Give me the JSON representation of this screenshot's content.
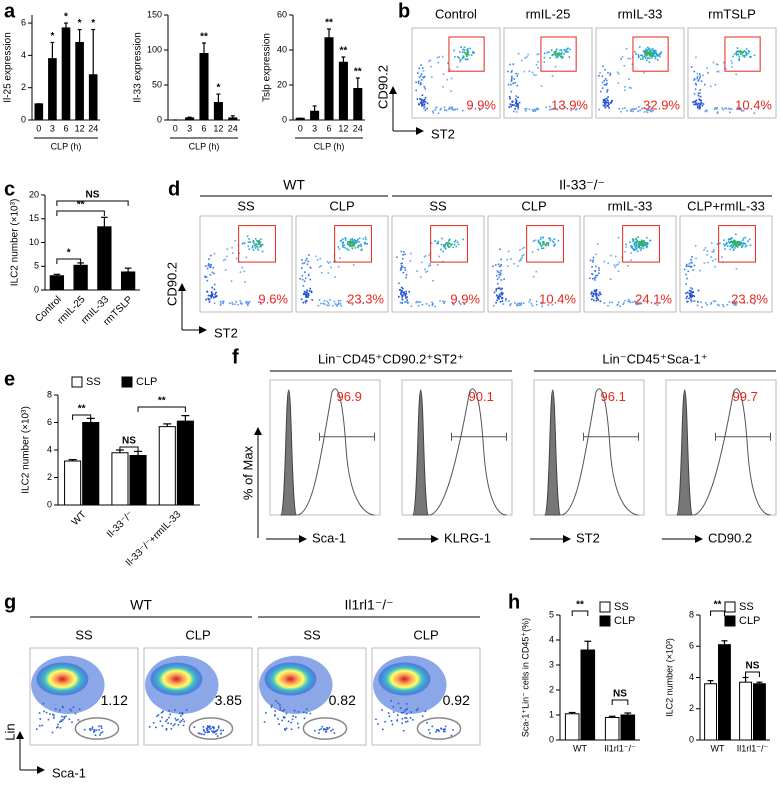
{
  "chart_data": [
    {
      "type": "bar",
      "panel": "a",
      "ylabel": "Il-25 expression",
      "xlabel": "CLP (h)",
      "categories": [
        0,
        3,
        6,
        12,
        24
      ],
      "values": [
        1,
        3.8,
        5.7,
        4.8,
        2.8
      ],
      "errors": [
        0,
        1,
        0.3,
        0.8,
        2.8
      ],
      "annotations": [
        null,
        "*",
        "*",
        "*",
        "*"
      ],
      "color": "#000000",
      "ylim": [
        0,
        6.5
      ],
      "yticks": [
        0,
        2,
        4,
        6
      ]
    },
    {
      "type": "bar",
      "ylabel": "Il-33 expression",
      "xlabel": "CLP (h)",
      "categories": [
        0,
        3,
        6,
        12,
        24
      ],
      "values": [
        0,
        3,
        95,
        25,
        3
      ],
      "errors": [
        0,
        1,
        15,
        12,
        3
      ],
      "annotations": [
        null,
        null,
        "**",
        "*",
        null
      ],
      "color": "#000000",
      "ylim": [
        0,
        150
      ],
      "yticks": [
        0,
        50,
        100,
        150
      ]
    },
    {
      "type": "bar",
      "ylabel": "Tslp expression",
      "xlabel": "CLP (h)",
      "categories": [
        0,
        3,
        6,
        12,
        24
      ],
      "values": [
        1,
        5,
        47,
        33,
        18
      ],
      "errors": [
        0,
        3,
        5,
        3,
        6
      ],
      "annotations": [
        null,
        null,
        "**",
        "**",
        "**"
      ],
      "color": "#000000",
      "ylim": [
        0,
        60
      ],
      "yticks": [
        0,
        20,
        40,
        60
      ]
    },
    {
      "type": "bar",
      "panel": "c",
      "ylabel": "ILC2 number (×10³)",
      "categories": [
        "Control",
        "rmIL-25",
        "rmIL-33",
        "rmTSLP"
      ],
      "values": [
        3,
        5.2,
        13.3,
        3.8
      ],
      "errors": [
        0.3,
        0.5,
        2,
        0.8
      ],
      "annotations": [
        "*",
        "**",
        "NS"
      ],
      "color": "#000000",
      "ylim": [
        0,
        20
      ],
      "yticks": [
        0,
        5,
        10,
        15,
        20
      ]
    },
    {
      "type": "bar",
      "panel": "e",
      "ylabel": "ILC2 number (×10³)",
      "categories": [
        "WT",
        "Il-33⁻/⁻",
        "Il-33⁻/⁻+rmIL-33"
      ],
      "series": [
        {
          "name": "SS",
          "color": "#ffffff",
          "values": [
            3.2,
            3.8,
            5.7
          ],
          "errors": [
            0.1,
            0.2,
            0.2
          ]
        },
        {
          "name": "CLP",
          "color": "#000000",
          "values": [
            6.0,
            3.6,
            6.1
          ],
          "errors": [
            0.3,
            0.3,
            0.4
          ]
        }
      ],
      "annotations": [
        "**",
        "NS",
        "**"
      ],
      "ylim": [
        0,
        8
      ],
      "yticks": [
        0,
        2,
        4,
        6,
        8
      ]
    },
    {
      "type": "bar",
      "panel": "h",
      "ylabel": "Sca-1⁺Lin⁻ cells in CD45⁺(%)",
      "categories": [
        "WT",
        "Il1rl1⁻/⁻"
      ],
      "series": [
        {
          "name": "SS",
          "color": "#ffffff",
          "values": [
            1.05,
            0.9
          ],
          "errors": [
            0.05,
            0.05
          ]
        },
        {
          "name": "CLP",
          "color": "#000000",
          "values": [
            3.6,
            1.0
          ],
          "errors": [
            0.35,
            0.08
          ]
        }
      ],
      "annotations": [
        "**",
        "NS"
      ],
      "ylim": [
        0,
        5
      ],
      "yticks": [
        0,
        1,
        2,
        3,
        4,
        5
      ]
    },
    {
      "type": "bar",
      "ylabel": "ILC2 number (×10³)",
      "categories": [
        "WT",
        "Il1rl1⁻/⁻"
      ],
      "series": [
        {
          "name": "SS",
          "color": "#ffffff",
          "values": [
            3.6,
            3.7
          ],
          "errors": [
            0.2,
            0.3
          ]
        },
        {
          "name": "CLP",
          "color": "#000000",
          "values": [
            6.1,
            3.6
          ],
          "errors": [
            0.25,
            0.1
          ]
        }
      ],
      "annotations": [
        "**",
        "NS"
      ],
      "ylim": [
        0,
        8
      ],
      "yticks": [
        0,
        2,
        4,
        6,
        8
      ]
    }
  ],
  "flow_panels": {
    "b": {
      "label": "b",
      "ylabel": "CD90.2",
      "xlabel": "ST2",
      "plots": [
        {
          "title": "Control",
          "gate": "9.9%"
        },
        {
          "title": "rmIL-25",
          "gate": "13.9%"
        },
        {
          "title": "rmIL-33",
          "gate": "32.9%"
        },
        {
          "title": "rmTSLP",
          "gate": "10.4%"
        }
      ]
    },
    "d": {
      "label": "d",
      "ylabel": "CD90.2",
      "xlabel": "ST2",
      "groups": [
        {
          "title": "WT",
          "plots": [
            {
              "title": "SS",
              "gate": "9.6%"
            },
            {
              "title": "CLP",
              "gate": "23.3%"
            }
          ]
        },
        {
          "title": "Il-33⁻/⁻",
          "plots": [
            {
              "title": "SS",
              "gate": "9.9%"
            },
            {
              "title": "CLP",
              "gate": "10.4%"
            },
            {
              "title": "rmIL-33",
              "gate": "24.1%"
            },
            {
              "title": "CLP+rmIL-33",
              "gate": "23.8%"
            }
          ]
        }
      ]
    },
    "f": {
      "label": "f",
      "ylabel": "% of Max",
      "groups": [
        {
          "title": "Lin⁻CD45⁺CD90.2⁺ST2⁺",
          "plots": [
            {
              "gate": "96.9",
              "xlabel": "Sca-1"
            },
            {
              "gate": "90.1",
              "xlabel": "KLRG-1"
            }
          ]
        },
        {
          "title": "Lin⁻CD45⁺Sca-1⁺",
          "plots": [
            {
              "gate": "96.1",
              "xlabel": "ST2"
            },
            {
              "gate": "99.7",
              "xlabel": "CD90.2"
            }
          ]
        }
      ]
    },
    "g": {
      "label": "g",
      "ylabel": "Lin",
      "xlabel": "Sca-1",
      "groups": [
        {
          "title": "WT",
          "plots": [
            {
              "title": "SS",
              "gate": "1.12"
            },
            {
              "title": "CLP",
              "gate": "3.85"
            }
          ]
        },
        {
          "title": "Il1rl1⁻/⁻",
          "plots": [
            {
              "title": "SS",
              "gate": "0.82"
            },
            {
              "title": "CLP",
              "gate": "0.92"
            }
          ]
        }
      ]
    }
  }
}
